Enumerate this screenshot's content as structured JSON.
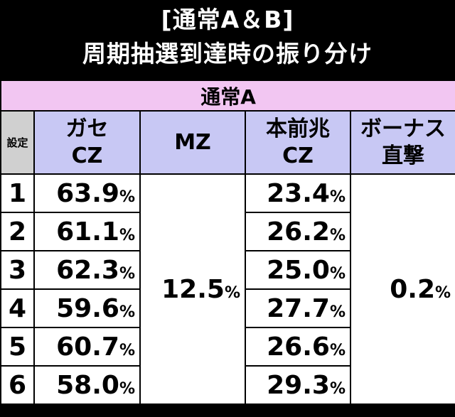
{
  "header": {
    "title": [
      "[通常A＆B]",
      "周期抽選到達時の振り分け"
    ]
  },
  "table": {
    "section": "通常A",
    "columns": [
      "設定",
      "ガセ\nCZ",
      "MZ",
      "本前兆\nCZ",
      "ボーナス\n直撃"
    ],
    "mz": "12.5%",
    "bonus": "0.2%",
    "rows": [
      {
        "setting": "1",
        "gase_cz": "63.9%",
        "honzen_cz": "23.4%"
      },
      {
        "setting": "2",
        "gase_cz": "61.1%",
        "honzen_cz": "26.2%"
      },
      {
        "setting": "3",
        "gase_cz": "62.3%",
        "honzen_cz": "25.0%"
      },
      {
        "setting": "4",
        "gase_cz": "59.6%",
        "honzen_cz": "27.7%"
      },
      {
        "setting": "5",
        "gase_cz": "60.7%",
        "honzen_cz": "26.6%"
      },
      {
        "setting": "6",
        "gase_cz": "58.0%",
        "honzen_cz": "29.3%"
      }
    ]
  }
}
